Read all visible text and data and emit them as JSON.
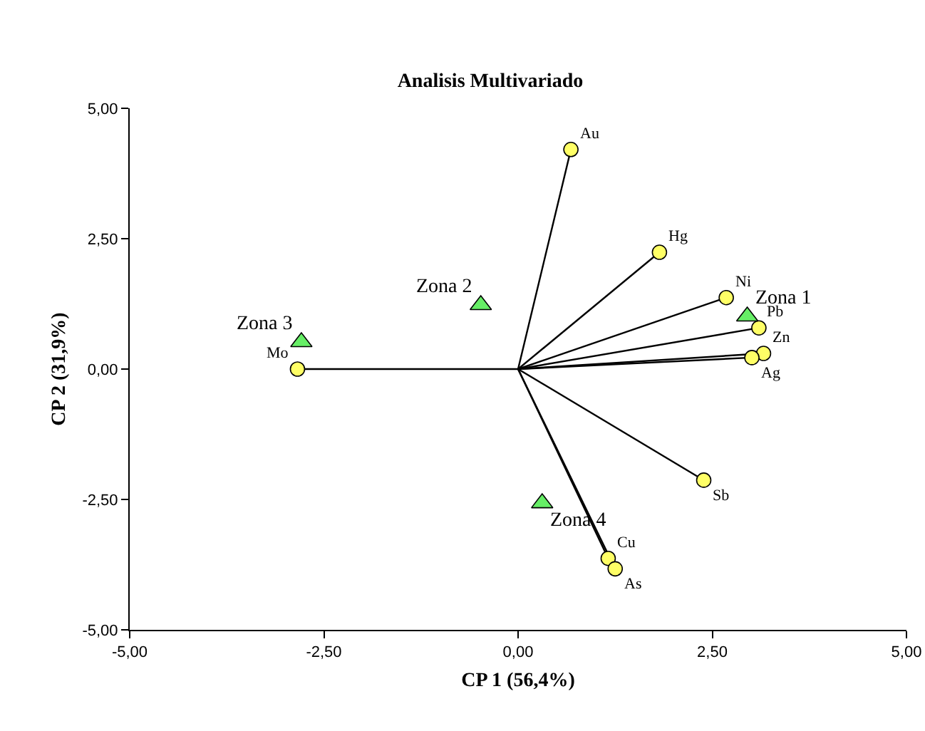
{
  "chart_data": {
    "type": "scatter",
    "title": "Analisis Multivariado",
    "xlabel": "CP 1 (56,4%)",
    "ylabel": "CP 2 (31,9%)",
    "xlim": [
      -5,
      5
    ],
    "ylim": [
      -5,
      5
    ],
    "xticks": [
      {
        "value": -5,
        "label": "-5,00"
      },
      {
        "value": -2.5,
        "label": "-2,50"
      },
      {
        "value": 0,
        "label": "0,00"
      },
      {
        "value": 2.5,
        "label": "2,50"
      },
      {
        "value": 5,
        "label": "5,00"
      }
    ],
    "yticks": [
      {
        "value": -5,
        "label": "-5,00"
      },
      {
        "value": -2.5,
        "label": "-2,50"
      },
      {
        "value": 0,
        "label": "0,00"
      },
      {
        "value": 2.5,
        "label": "2,50"
      },
      {
        "value": 5,
        "label": "5,00"
      }
    ],
    "grid": false,
    "series": [
      {
        "type": "line",
        "color": "#000000",
        "x": [
          0,
          0.68,
          null,
          0,
          1.82,
          null,
          0,
          2.68,
          null,
          0,
          3.1,
          null,
          0,
          3.16,
          null,
          0,
          3.01,
          null,
          0,
          -2.84,
          null,
          0,
          2.39,
          null,
          0,
          1.16,
          null,
          0,
          1.25
        ],
        "values": [
          0,
          4.21,
          null,
          0,
          2.24,
          null,
          0,
          1.37,
          null,
          0,
          0.79,
          null,
          0,
          0.3,
          null,
          0,
          0.22,
          null,
          0,
          0,
          null,
          0,
          -2.13,
          null,
          0,
          -3.63,
          null,
          0,
          -3.83
        ]
      },
      {
        "type": "scatter",
        "marker": "circle",
        "color": "#ffff66",
        "x": [
          0.68,
          1.82,
          2.68,
          3.1,
          3.16,
          3.01,
          -2.84,
          2.39,
          1.16,
          1.25
        ],
        "values": [
          4.21,
          2.24,
          1.37,
          0.79,
          0.3,
          0.22,
          0,
          -2.13,
          -3.63,
          -3.83
        ]
      },
      {
        "type": "scatter",
        "marker": "triangle",
        "color": "#66ee66",
        "x": [
          2.95,
          -0.48,
          -2.79,
          0.31
        ],
        "values": [
          1.01,
          1.23,
          0.52,
          -2.57
        ]
      }
    ],
    "annotations": [
      {
        "text": "Au",
        "x": 0.68,
        "y": 4.21
      },
      {
        "text": "Hg",
        "x": 1.82,
        "y": 2.24
      },
      {
        "text": "Ni",
        "x": 2.68,
        "y": 1.37
      },
      {
        "text": "Pb",
        "x": 3.1,
        "y": 0.79
      },
      {
        "text": "Zn",
        "x": 3.16,
        "y": 0.3
      },
      {
        "text": "Ag",
        "x": 3.01,
        "y": 0.22
      },
      {
        "text": "Mo",
        "x": -2.84,
        "y": 0
      },
      {
        "text": "Sb",
        "x": 2.39,
        "y": -2.13
      },
      {
        "text": "Cu",
        "x": 1.16,
        "y": -3.63
      },
      {
        "text": "As",
        "x": 1.25,
        "y": -3.83
      },
      {
        "text": "Zona 1",
        "x": 2.95,
        "y": 1.01
      },
      {
        "text": "Zona 2",
        "x": -0.48,
        "y": 1.23
      },
      {
        "text": "Zona 3",
        "x": -2.79,
        "y": 0.52
      },
      {
        "text": "Zona 4",
        "x": 0.31,
        "y": -2.57
      }
    ]
  }
}
